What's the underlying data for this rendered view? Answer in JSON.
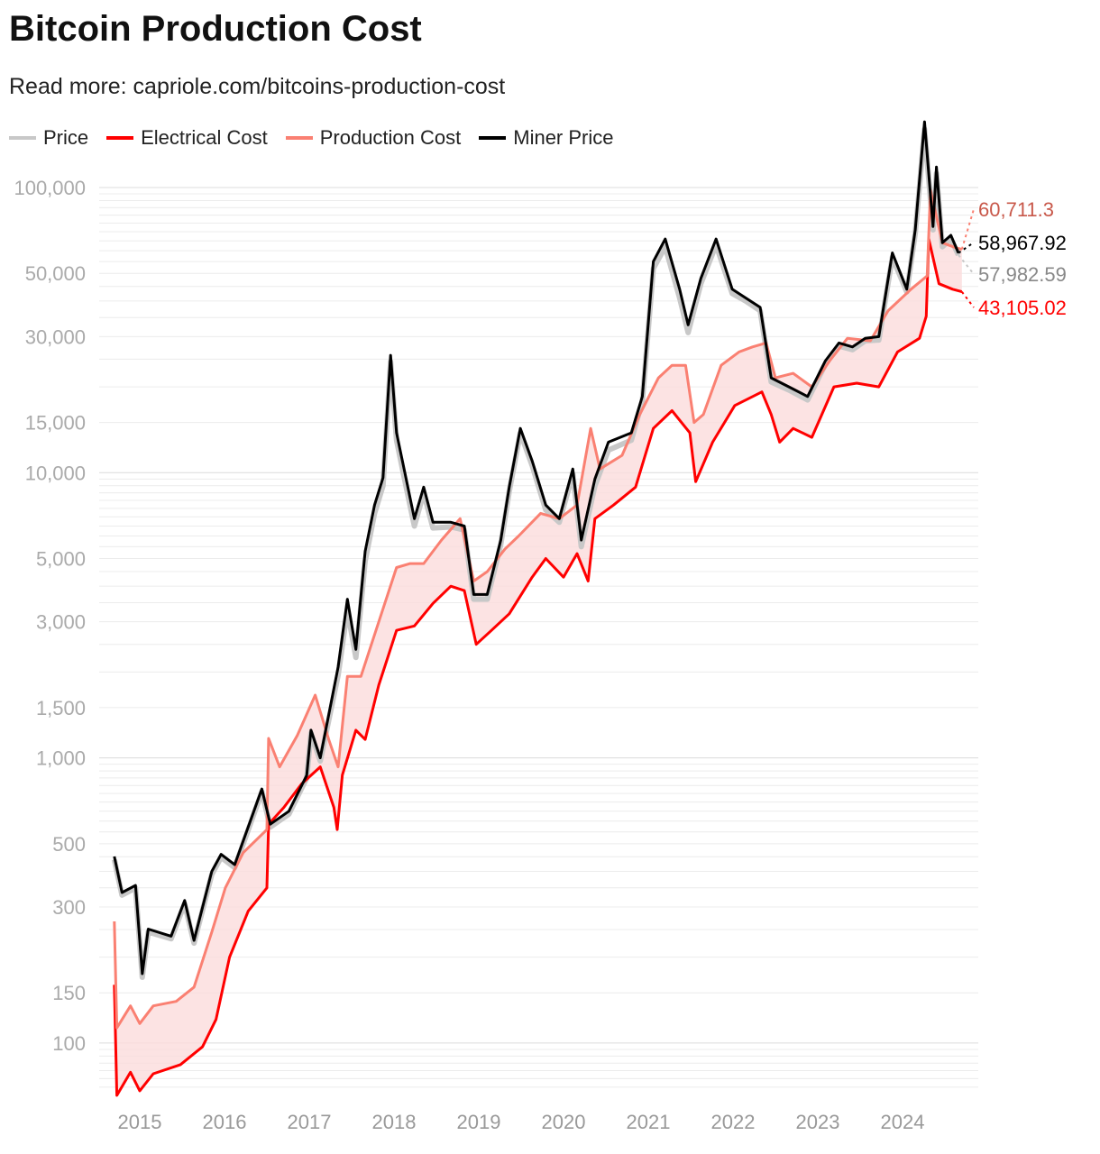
{
  "chart_data": {
    "type": "line",
    "title": "Bitcoin Production Cost",
    "subtitle": "Read more: capriole.com/bitcoins-production-cost",
    "y_scale": "log",
    "ylim": [
      60,
      180000
    ],
    "xlim": [
      2014.5,
      2025.3
    ],
    "grid": true,
    "legend_position": "top-left",
    "y_ticks": [
      100,
      150,
      300,
      500,
      1000,
      1500,
      3000,
      5000,
      10000,
      15000,
      30000,
      50000,
      100000
    ],
    "y_tick_labels": [
      "100",
      "150",
      "300",
      "500",
      "1,000",
      "1,500",
      "3,000",
      "5,000",
      "10,000",
      "15,000",
      "30,000",
      "50,000",
      "100,000"
    ],
    "x_ticks": [
      2015,
      2016,
      2017,
      2018,
      2019,
      2020,
      2021,
      2022,
      2023,
      2024
    ],
    "x_tick_labels": [
      "2015",
      "2016",
      "2017",
      "2018",
      "2019",
      "2020",
      "2021",
      "2022",
      "2023",
      "2024"
    ],
    "shaded_between": [
      "Production Cost",
      "Electrical Cost"
    ],
    "shade_color": "#fbdcdc",
    "series": [
      {
        "name": "Price",
        "color": "#c8c8c8",
        "last_label": "57,982.59",
        "label_color": "#888888",
        "points": [
          [
            2014.7,
            440
          ],
          [
            2014.79,
            330
          ],
          [
            2014.95,
            350
          ],
          [
            2015.03,
            170
          ],
          [
            2015.1,
            245
          ],
          [
            2015.37,
            232
          ],
          [
            2015.53,
            308
          ],
          [
            2015.64,
            224
          ],
          [
            2015.85,
            390
          ],
          [
            2015.96,
            448
          ],
          [
            2016.12,
            412
          ],
          [
            2016.44,
            760
          ],
          [
            2016.54,
            572
          ],
          [
            2016.76,
            635
          ],
          [
            2016.97,
            850
          ],
          [
            2017.02,
            1220
          ],
          [
            2017.13,
            975
          ],
          [
            2017.34,
            1950
          ],
          [
            2017.45,
            3300
          ],
          [
            2017.55,
            2250
          ],
          [
            2017.66,
            4900
          ],
          [
            2017.77,
            7200
          ],
          [
            2017.87,
            9000
          ],
          [
            2017.96,
            24500
          ],
          [
            2018.03,
            13000
          ],
          [
            2018.14,
            9000
          ],
          [
            2018.24,
            6500
          ],
          [
            2018.35,
            8500
          ],
          [
            2018.46,
            6400
          ],
          [
            2018.67,
            6450
          ],
          [
            2018.83,
            6300
          ],
          [
            2018.94,
            3600
          ],
          [
            2019.1,
            3600
          ],
          [
            2019.26,
            5600
          ],
          [
            2019.36,
            8600
          ],
          [
            2019.49,
            13800
          ],
          [
            2019.63,
            10600
          ],
          [
            2019.79,
            7400
          ],
          [
            2019.95,
            6700
          ],
          [
            2020.11,
            9900
          ],
          [
            2020.21,
            5500
          ],
          [
            2020.37,
            9000
          ],
          [
            2020.53,
            12000
          ],
          [
            2020.8,
            13000
          ],
          [
            2020.93,
            17800
          ],
          [
            2021.06,
            52000
          ],
          [
            2021.2,
            62000
          ],
          [
            2021.37,
            41000
          ],
          [
            2021.47,
            31000
          ],
          [
            2021.62,
            46000
          ],
          [
            2021.8,
            63000
          ],
          [
            2021.99,
            42500
          ],
          [
            2022.15,
            40000
          ],
          [
            2022.32,
            37000
          ],
          [
            2022.45,
            20800
          ],
          [
            2022.66,
            19500
          ],
          [
            2022.88,
            18000
          ],
          [
            2023.09,
            24000
          ],
          [
            2023.25,
            27800
          ],
          [
            2023.41,
            27000
          ],
          [
            2023.56,
            29000
          ],
          [
            2023.72,
            29200
          ],
          [
            2023.88,
            57000
          ],
          [
            2024.05,
            43000
          ],
          [
            2024.15,
            69000
          ],
          [
            2024.26,
            160000
          ],
          [
            2024.36,
            71000
          ],
          [
            2024.4,
            112000
          ],
          [
            2024.47,
            62000
          ],
          [
            2024.57,
            66000
          ],
          [
            2024.66,
            57982.59
          ]
        ]
      },
      {
        "name": "Electrical Cost",
        "color": "#ff0000",
        "last_label": "43,105.02",
        "label_color": "#ff0000",
        "points": [
          [
            2014.7,
            160
          ],
          [
            2014.73,
            65.5
          ],
          [
            2014.89,
            79
          ],
          [
            2015.0,
            68
          ],
          [
            2015.16,
            78
          ],
          [
            2015.48,
            84
          ],
          [
            2015.74,
            97
          ],
          [
            2015.9,
            121
          ],
          [
            2016.06,
            200
          ],
          [
            2016.28,
            290
          ],
          [
            2016.5,
            350
          ],
          [
            2016.52,
            585
          ],
          [
            2016.7,
            670
          ],
          [
            2016.91,
            810
          ],
          [
            2017.13,
            930
          ],
          [
            2017.29,
            670
          ],
          [
            2017.33,
            560
          ],
          [
            2017.39,
            870
          ],
          [
            2017.55,
            1250
          ],
          [
            2017.66,
            1160
          ],
          [
            2017.82,
            1800
          ],
          [
            2018.03,
            2800
          ],
          [
            2018.24,
            2900
          ],
          [
            2018.46,
            3480
          ],
          [
            2018.67,
            4000
          ],
          [
            2018.83,
            3860
          ],
          [
            2018.97,
            2500
          ],
          [
            2019.15,
            2800
          ],
          [
            2019.36,
            3200
          ],
          [
            2019.63,
            4300
          ],
          [
            2019.79,
            5000
          ],
          [
            2020.0,
            4300
          ],
          [
            2020.16,
            5200
          ],
          [
            2020.29,
            4170
          ],
          [
            2020.37,
            6900
          ],
          [
            2020.59,
            7700
          ],
          [
            2020.85,
            8900
          ],
          [
            2021.06,
            14300
          ],
          [
            2021.28,
            16500
          ],
          [
            2021.49,
            13800
          ],
          [
            2021.56,
            9300
          ],
          [
            2021.76,
            12800
          ],
          [
            2022.02,
            17200
          ],
          [
            2022.34,
            19200
          ],
          [
            2022.45,
            16000
          ],
          [
            2022.55,
            12800
          ],
          [
            2022.71,
            14300
          ],
          [
            2022.93,
            13300
          ],
          [
            2023.19,
            20000
          ],
          [
            2023.46,
            20600
          ],
          [
            2023.72,
            20000
          ],
          [
            2023.94,
            26500
          ],
          [
            2024.2,
            29600
          ],
          [
            2024.28,
            35400
          ],
          [
            2024.31,
            66000
          ],
          [
            2024.43,
            46000
          ],
          [
            2024.59,
            44000
          ],
          [
            2024.7,
            43105.02
          ]
        ]
      },
      {
        "name": "Production Cost",
        "color": "#fa8072",
        "last_label": "60,711.3",
        "label_color": "#c8584a",
        "points": [
          [
            2014.7,
            267
          ],
          [
            2014.73,
            113
          ],
          [
            2014.89,
            135
          ],
          [
            2015.0,
            117
          ],
          [
            2015.16,
            135
          ],
          [
            2015.43,
            140
          ],
          [
            2015.64,
            157
          ],
          [
            2015.85,
            245
          ],
          [
            2016.01,
            350
          ],
          [
            2016.22,
            465
          ],
          [
            2016.5,
            560
          ],
          [
            2016.52,
            1170
          ],
          [
            2016.65,
            930
          ],
          [
            2016.86,
            1200
          ],
          [
            2017.07,
            1660
          ],
          [
            2017.23,
            1160
          ],
          [
            2017.34,
            930
          ],
          [
            2017.45,
            1930
          ],
          [
            2017.61,
            1930
          ],
          [
            2017.82,
            3000
          ],
          [
            2018.03,
            4650
          ],
          [
            2018.19,
            4800
          ],
          [
            2018.35,
            4800
          ],
          [
            2018.56,
            5800
          ],
          [
            2018.78,
            6900
          ],
          [
            2018.94,
            4170
          ],
          [
            2019.1,
            4500
          ],
          [
            2019.31,
            5400
          ],
          [
            2019.47,
            6000
          ],
          [
            2019.73,
            7200
          ],
          [
            2019.95,
            6900
          ],
          [
            2020.16,
            7700
          ],
          [
            2020.32,
            14300
          ],
          [
            2020.43,
            10300
          ],
          [
            2020.69,
            11500
          ],
          [
            2020.9,
            16000
          ],
          [
            2021.12,
            21500
          ],
          [
            2021.28,
            23800
          ],
          [
            2021.44,
            23800
          ],
          [
            2021.54,
            15000
          ],
          [
            2021.65,
            16000
          ],
          [
            2021.86,
            23800
          ],
          [
            2022.07,
            26500
          ],
          [
            2022.23,
            27600
          ],
          [
            2022.39,
            28500
          ],
          [
            2022.5,
            21500
          ],
          [
            2022.71,
            22300
          ],
          [
            2022.93,
            20000
          ],
          [
            2023.14,
            24700
          ],
          [
            2023.35,
            29600
          ],
          [
            2023.62,
            29000
          ],
          [
            2023.83,
            37000
          ],
          [
            2024.1,
            44000
          ],
          [
            2024.29,
            49000
          ],
          [
            2024.33,
            98000
          ],
          [
            2024.47,
            64000
          ],
          [
            2024.63,
            61500
          ],
          [
            2024.7,
            60711.3
          ]
        ]
      },
      {
        "name": "Miner Price",
        "color": "#000000",
        "last_label": "58,967.92",
        "label_color": "#000000",
        "points": [
          [
            2014.7,
            451
          ],
          [
            2014.79,
            337
          ],
          [
            2014.95,
            357
          ],
          [
            2015.03,
            175
          ],
          [
            2015.1,
            251
          ],
          [
            2015.37,
            237
          ],
          [
            2015.53,
            316
          ],
          [
            2015.64,
            229
          ],
          [
            2015.85,
            400
          ],
          [
            2015.96,
            459
          ],
          [
            2016.12,
            422
          ],
          [
            2016.44,
            778
          ],
          [
            2016.54,
            585
          ],
          [
            2016.76,
            650
          ],
          [
            2016.97,
            869
          ],
          [
            2017.02,
            1250
          ],
          [
            2017.13,
            1000
          ],
          [
            2017.34,
            2080
          ],
          [
            2017.45,
            3600
          ],
          [
            2017.55,
            2400
          ],
          [
            2017.66,
            5300
          ],
          [
            2017.77,
            7700
          ],
          [
            2017.87,
            9600
          ],
          [
            2017.96,
            25800
          ],
          [
            2018.03,
            13800
          ],
          [
            2018.14,
            9600
          ],
          [
            2018.24,
            6900
          ],
          [
            2018.35,
            8900
          ],
          [
            2018.46,
            6700
          ],
          [
            2018.67,
            6700
          ],
          [
            2018.83,
            6500
          ],
          [
            2018.94,
            3740
          ],
          [
            2019.1,
            3740
          ],
          [
            2019.26,
            5800
          ],
          [
            2019.36,
            8900
          ],
          [
            2019.49,
            14300
          ],
          [
            2019.63,
            11000
          ],
          [
            2019.79,
            7700
          ],
          [
            2019.95,
            6900
          ],
          [
            2020.11,
            10300
          ],
          [
            2020.21,
            5800
          ],
          [
            2020.37,
            9500
          ],
          [
            2020.53,
            12800
          ],
          [
            2020.8,
            13800
          ],
          [
            2020.93,
            18500
          ],
          [
            2021.06,
            55000
          ],
          [
            2021.2,
            66000
          ],
          [
            2021.37,
            44000
          ],
          [
            2021.47,
            33000
          ],
          [
            2021.62,
            48000
          ],
          [
            2021.8,
            66000
          ],
          [
            2021.99,
            44000
          ],
          [
            2022.15,
            41000
          ],
          [
            2022.32,
            38000
          ],
          [
            2022.45,
            21500
          ],
          [
            2022.66,
            20000
          ],
          [
            2022.88,
            18500
          ],
          [
            2023.09,
            24700
          ],
          [
            2023.25,
            28500
          ],
          [
            2023.41,
            27600
          ],
          [
            2023.56,
            29600
          ],
          [
            2023.72,
            30000
          ],
          [
            2023.88,
            59000
          ],
          [
            2024.05,
            44000
          ],
          [
            2024.15,
            71000
          ],
          [
            2024.26,
            170000
          ],
          [
            2024.36,
            73000
          ],
          [
            2024.4,
            118000
          ],
          [
            2024.47,
            64000
          ],
          [
            2024.57,
            68000
          ],
          [
            2024.66,
            58967.92
          ]
        ]
      }
    ]
  }
}
